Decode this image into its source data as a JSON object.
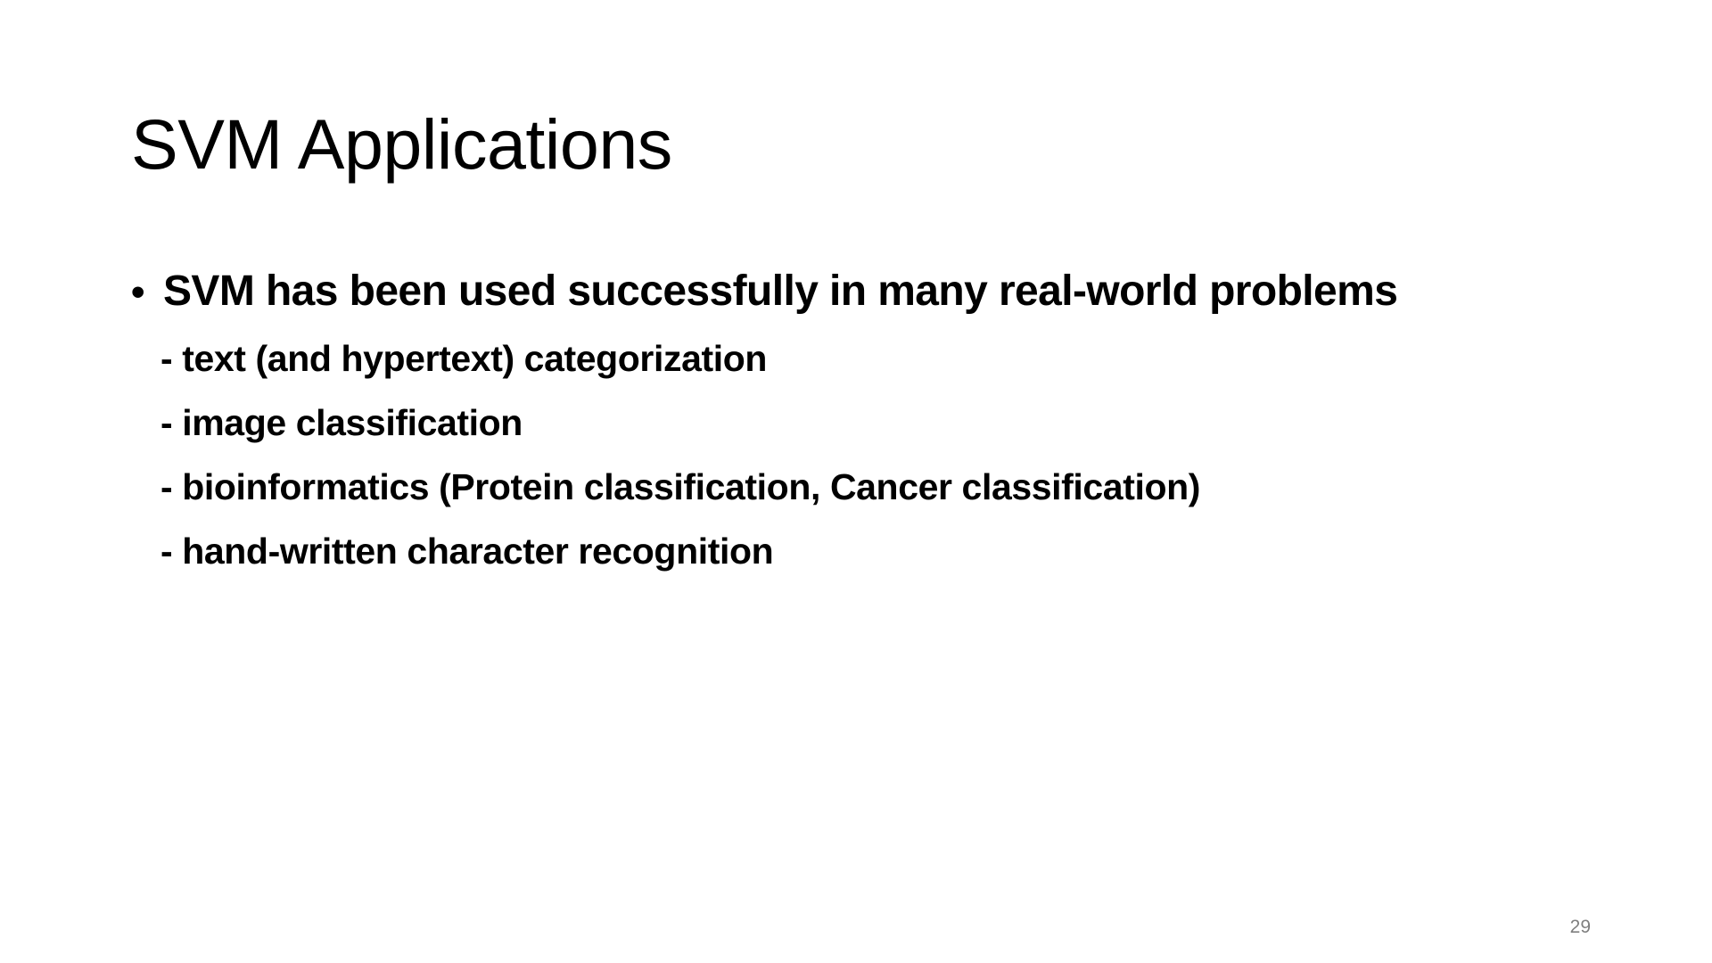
{
  "slide": {
    "title": "SVM Applications",
    "bullet": {
      "marker": "•",
      "text": "SVM has been used successfully in many real-world problems"
    },
    "sub_items": [
      "- text (and hypertext) categorization",
      "- image classification",
      "- bioinformatics (Protein classification, Cancer classification)",
      "- hand-written character recognition"
    ],
    "page_number": "29"
  }
}
